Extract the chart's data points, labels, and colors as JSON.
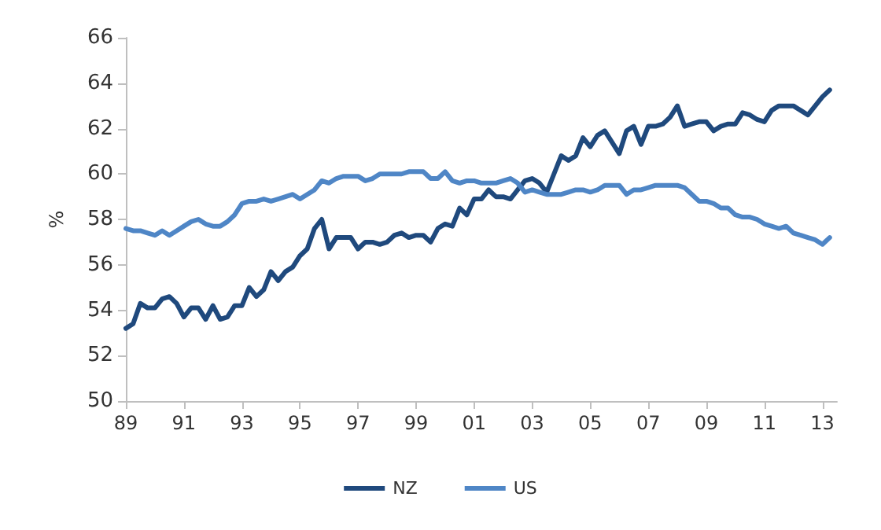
{
  "chart_data": {
    "type": "line",
    "ylabel": "%",
    "x": [
      1989,
      1989.25,
      1989.5,
      1989.75,
      1990,
      1990.25,
      1990.5,
      1990.75,
      1991,
      1991.25,
      1991.5,
      1991.75,
      1992,
      1992.25,
      1992.5,
      1992.75,
      1993,
      1993.25,
      1993.5,
      1993.75,
      1994,
      1994.25,
      1994.5,
      1994.75,
      1995,
      1995.25,
      1995.5,
      1995.75,
      1996,
      1996.25,
      1996.5,
      1996.75,
      1997,
      1997.25,
      1997.5,
      1997.75,
      1998,
      1998.25,
      1998.5,
      1998.75,
      1999,
      1999.25,
      1999.5,
      1999.75,
      2000,
      2000.25,
      2000.5,
      2000.75,
      2001,
      2001.25,
      2001.5,
      2001.75,
      2002,
      2002.25,
      2002.5,
      2002.75,
      2003,
      2003.25,
      2003.5,
      2003.75,
      2004,
      2004.25,
      2004.5,
      2004.75,
      2005,
      2005.25,
      2005.5,
      2005.75,
      2006,
      2006.25,
      2006.5,
      2006.75,
      2007,
      2007.25,
      2007.5,
      2007.75,
      2008,
      2008.25,
      2008.5,
      2008.75,
      2009,
      2009.25,
      2009.5,
      2009.75,
      2010,
      2010.25,
      2010.5,
      2010.75,
      2011,
      2011.25,
      2011.5,
      2011.75,
      2012,
      2012.25,
      2012.5,
      2012.75,
      2013,
      2013.25
    ],
    "series": [
      {
        "name": "NZ",
        "color": "#1f497d",
        "values": [
          53.2,
          53.4,
          54.3,
          54.1,
          54.1,
          54.5,
          54.6,
          54.3,
          53.7,
          54.1,
          54.1,
          53.6,
          54.2,
          53.6,
          53.7,
          54.2,
          54.2,
          55.0,
          54.6,
          54.9,
          55.7,
          55.3,
          55.7,
          55.9,
          56.4,
          56.7,
          57.6,
          58.0,
          56.7,
          57.2,
          57.2,
          57.2,
          56.7,
          57.0,
          57.0,
          56.9,
          57.0,
          57.3,
          57.4,
          57.2,
          57.3,
          57.3,
          57.0,
          57.6,
          57.8,
          57.7,
          58.5,
          58.2,
          58.9,
          58.9,
          59.3,
          59.0,
          59.0,
          58.9,
          59.3,
          59.7,
          59.8,
          59.6,
          59.2,
          60.0,
          60.8,
          60.6,
          60.8,
          61.6,
          61.2,
          61.7,
          61.9,
          61.4,
          60.9,
          61.9,
          62.1,
          61.3,
          62.1,
          62.1,
          62.2,
          62.5,
          63.0,
          62.1,
          62.2,
          62.3,
          62.3,
          61.9,
          62.1,
          62.2,
          62.2,
          62.7,
          62.6,
          62.4,
          62.3,
          62.8,
          63.0,
          63.0,
          63.0,
          62.8,
          62.6,
          63.0,
          63.4,
          63.7
        ]
      },
      {
        "name": "US",
        "color": "#4f86c6",
        "values": [
          57.6,
          57.5,
          57.5,
          57.4,
          57.3,
          57.5,
          57.3,
          57.5,
          57.7,
          57.9,
          58.0,
          57.8,
          57.7,
          57.7,
          57.9,
          58.2,
          58.7,
          58.8,
          58.8,
          58.9,
          58.8,
          58.9,
          59.0,
          59.1,
          58.9,
          59.1,
          59.3,
          59.7,
          59.6,
          59.8,
          59.9,
          59.9,
          59.9,
          59.7,
          59.8,
          60.0,
          60.0,
          60.0,
          60.0,
          60.1,
          60.1,
          60.1,
          59.8,
          59.8,
          60.1,
          59.7,
          59.6,
          59.7,
          59.7,
          59.6,
          59.6,
          59.6,
          59.7,
          59.8,
          59.6,
          59.2,
          59.3,
          59.2,
          59.1,
          59.1,
          59.1,
          59.2,
          59.3,
          59.3,
          59.2,
          59.3,
          59.5,
          59.5,
          59.5,
          59.1,
          59.3,
          59.3,
          59.4,
          59.5,
          59.5,
          59.5,
          59.5,
          59.4,
          59.1,
          58.8,
          58.8,
          58.7,
          58.5,
          58.5,
          58.2,
          58.1,
          58.1,
          58.0,
          57.8,
          57.7,
          57.6,
          57.7,
          57.4,
          57.3,
          57.2,
          57.1,
          56.9,
          57.2
        ]
      }
    ],
    "xlim": [
      1989,
      2013.5
    ],
    "xticks": [
      {
        "value": 1989,
        "label": "89"
      },
      {
        "value": 1991,
        "label": "91"
      },
      {
        "value": 1993,
        "label": "93"
      },
      {
        "value": 1995,
        "label": "95"
      },
      {
        "value": 1997,
        "label": "97"
      },
      {
        "value": 1999,
        "label": "99"
      },
      {
        "value": 2001,
        "label": "01"
      },
      {
        "value": 2003,
        "label": "03"
      },
      {
        "value": 2005,
        "label": "05"
      },
      {
        "value": 2007,
        "label": "07"
      },
      {
        "value": 2009,
        "label": "09"
      },
      {
        "value": 2011,
        "label": "11"
      },
      {
        "value": 2013,
        "label": "13"
      }
    ],
    "ylim": [
      50,
      66
    ],
    "yticks": [
      50,
      52,
      54,
      56,
      58,
      60,
      62,
      64,
      66
    ],
    "grid": false,
    "legend": "bottom",
    "marker": "none",
    "line_style": "solid"
  }
}
